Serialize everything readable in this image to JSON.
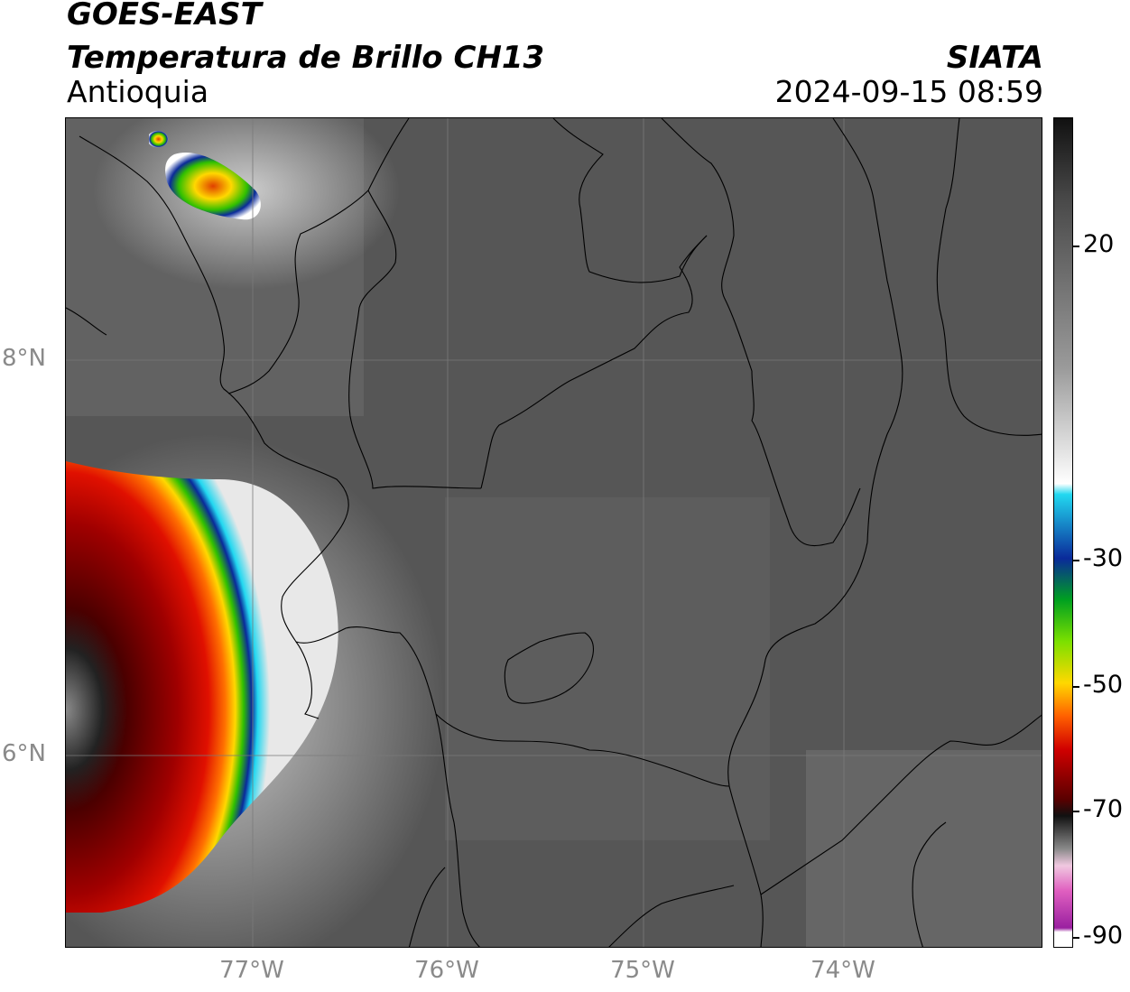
{
  "header": {
    "satellite": "GOES-EAST",
    "product": "Temperatura de Brillo CH13",
    "region": "Antioquia",
    "organization": "SIATA",
    "datetime": "2024-09-15 08:59"
  },
  "map": {
    "lat_labels": [
      "8°N",
      "6°N"
    ],
    "lon_labels": [
      "77°W",
      "76°W",
      "75°W",
      "74°W"
    ],
    "background_color": "#575757",
    "border_color": "#000000",
    "grid_color": "#7a7a7a"
  },
  "colorbar": {
    "tick_labels": [
      "20",
      "-30",
      "-50",
      "-70",
      "-90"
    ],
    "units": "",
    "colors_top_to_bottom": [
      "#111111",
      "#4a4a4a",
      "#9a9a9a",
      "#ffffff",
      "#22d8f0",
      "#0a2a9a",
      "#00a020",
      "#7be000",
      "#ffd800",
      "#ff6000",
      "#d00000",
      "#5a0000",
      "#111111",
      "#8a8a8a",
      "#f0c8e0",
      "#e060c0",
      "#9a20a0",
      "#ffffff"
    ]
  }
}
